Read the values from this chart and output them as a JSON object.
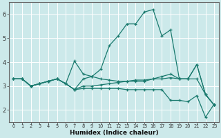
{
  "xlabel": "Humidex (Indice chaleur)",
  "ylabel": "",
  "bg_color": "#cce9ea",
  "grid_color": "#ffffff",
  "line_color": "#1a7a6e",
  "xlim": [
    -0.5,
    23.5
  ],
  "ylim": [
    1.5,
    6.5
  ],
  "yticks": [
    2,
    3,
    4,
    5,
    6
  ],
  "xticks": [
    0,
    1,
    2,
    3,
    4,
    5,
    6,
    7,
    8,
    9,
    10,
    11,
    12,
    13,
    14,
    15,
    16,
    17,
    18,
    19,
    20,
    21,
    22,
    23
  ],
  "lines": [
    {
      "x": [
        0,
        1,
        2,
        3,
        4,
        5,
        6,
        7,
        8,
        9,
        10,
        11,
        12,
        13,
        14,
        15,
        16,
        17,
        18,
        19,
        20,
        21,
        22,
        23
      ],
      "y": [
        3.3,
        3.3,
        3.0,
        3.1,
        3.2,
        3.3,
        3.1,
        2.85,
        3.3,
        3.4,
        3.7,
        4.7,
        5.1,
        5.6,
        5.6,
        6.1,
        6.2,
        5.1,
        5.35,
        3.3,
        3.3,
        3.9,
        2.65,
        2.2
      ]
    },
    {
      "x": [
        0,
        1,
        2,
        3,
        4,
        5,
        6,
        7,
        8,
        9,
        10,
        11,
        12,
        13,
        14,
        15,
        16,
        17,
        18,
        19,
        20,
        21,
        22,
        23
      ],
      "y": [
        3.3,
        3.3,
        3.0,
        3.1,
        3.2,
        3.3,
        3.1,
        2.85,
        3.0,
        3.0,
        3.05,
        3.1,
        3.15,
        3.2,
        3.25,
        3.25,
        3.3,
        3.3,
        3.35,
        3.3,
        3.3,
        3.3,
        2.65,
        2.2
      ]
    },
    {
      "x": [
        0,
        1,
        2,
        3,
        4,
        5,
        6,
        7,
        8,
        9,
        10,
        11,
        12,
        13,
        14,
        15,
        16,
        17,
        18,
        19,
        20,
        21,
        22,
        23
      ],
      "y": [
        3.3,
        3.3,
        3.0,
        3.1,
        3.2,
        3.3,
        3.1,
        4.05,
        3.5,
        3.4,
        3.3,
        3.25,
        3.2,
        3.2,
        3.2,
        3.2,
        3.3,
        3.4,
        3.5,
        3.3,
        3.3,
        3.9,
        2.65,
        2.2
      ]
    },
    {
      "x": [
        0,
        1,
        2,
        3,
        4,
        5,
        6,
        7,
        8,
        9,
        10,
        11,
        12,
        13,
        14,
        15,
        16,
        17,
        18,
        19,
        20,
        21,
        22,
        23
      ],
      "y": [
        3.3,
        3.3,
        3.0,
        3.1,
        3.2,
        3.3,
        3.1,
        2.85,
        2.9,
        2.9,
        2.9,
        2.9,
        2.9,
        2.85,
        2.85,
        2.85,
        2.85,
        2.85,
        2.4,
        2.4,
        2.35,
        2.6,
        1.7,
        2.25
      ]
    }
  ],
  "xlabel_fontsize": 6.5,
  "xlabel_fontweight": "bold",
  "xtick_fontsize": 4.8,
  "ytick_fontsize": 6.0,
  "linewidth": 0.9,
  "markersize": 3.5
}
